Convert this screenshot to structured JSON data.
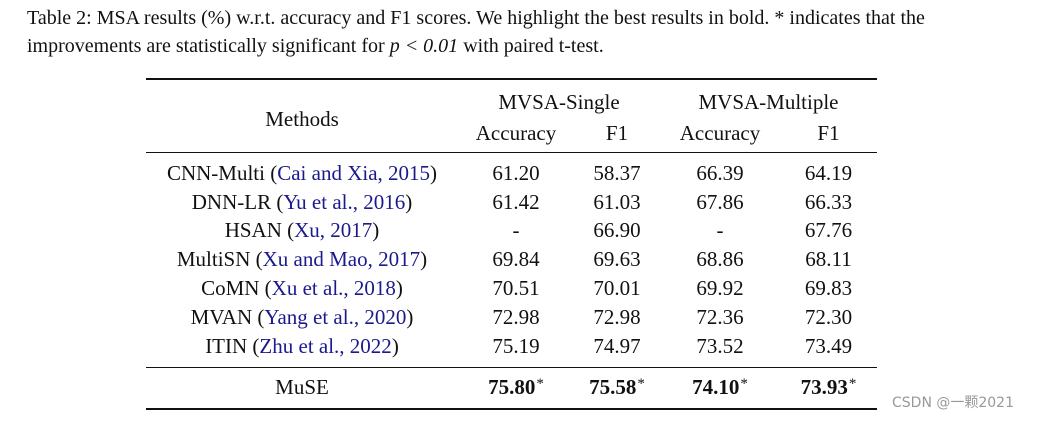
{
  "caption": {
    "prefix": "Table 2: MSA results (%) w.r.t. accuracy and F1 scores. We highlight the best results in bold. * indicates that the improvements are statistically significant for ",
    "math": "p < 0.01",
    "suffix": " with paired t-test."
  },
  "table": {
    "methods_header": "Methods",
    "group_headers": [
      "MVSA-Single",
      "MVSA-Multiple"
    ],
    "sub_headers": [
      "Accuracy",
      "F1",
      "Accuracy",
      "F1"
    ],
    "rows": [
      {
        "name": "CNN-Multi (",
        "cite": "Cai and Xia, 2015",
        "close": ")",
        "values": [
          "61.20",
          "58.37",
          "66.39",
          "64.19"
        ]
      },
      {
        "name": "DNN-LR (",
        "cite": "Yu et al., 2016",
        "close": ")",
        "values": [
          "61.42",
          "61.03",
          "67.86",
          "66.33"
        ]
      },
      {
        "name": "HSAN (",
        "cite": "Xu, 2017",
        "close": ")",
        "values": [
          "-",
          "66.90",
          "-",
          "67.76"
        ]
      },
      {
        "name": "MultiSN (",
        "cite": "Xu and Mao, 2017",
        "close": ")",
        "values": [
          "69.84",
          "69.63",
          "68.86",
          "68.11"
        ]
      },
      {
        "name": "CoMN (",
        "cite": "Xu et al., 2018",
        "close": ")",
        "values": [
          "70.51",
          "70.01",
          "69.92",
          "69.83"
        ]
      },
      {
        "name": "MVAN (",
        "cite": "Yang et al., 2020",
        "close": ")",
        "values": [
          "72.98",
          "72.98",
          "72.36",
          "72.30"
        ]
      },
      {
        "name": "ITIN (",
        "cite": "Zhu et al., 2022",
        "close": ")",
        "values": [
          "75.19",
          "74.97",
          "73.52",
          "73.49"
        ]
      }
    ],
    "final_row": {
      "name": "MuSE",
      "values": [
        "75.80",
        "75.58",
        "74.10",
        "73.93"
      ],
      "marker": "*"
    }
  },
  "watermark": "CSDN @一颗2021"
}
